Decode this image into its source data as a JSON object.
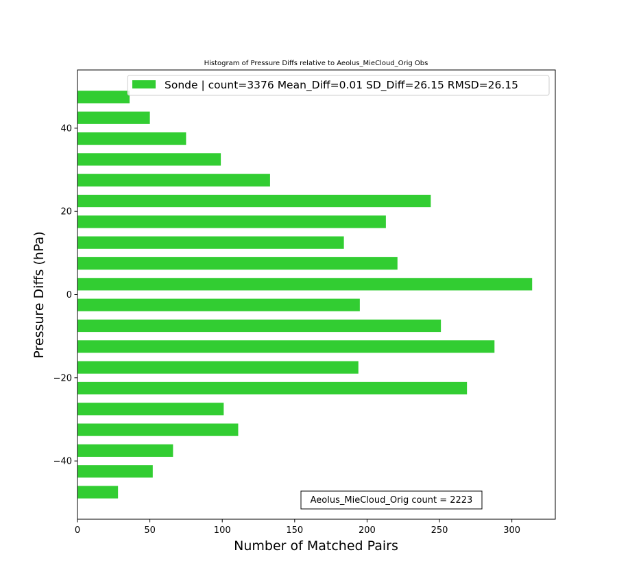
{
  "chart_data": {
    "type": "bar",
    "orientation": "horizontal",
    "title": "Histogram of Pressure Diffs relative to Aeolus_MieCloud_Orig Obs",
    "xlabel": "Number of Matched Pairs",
    "ylabel": "Pressure Diffs (hPa)",
    "xlim": [
      0,
      330
    ],
    "ylim": [
      -54,
      54
    ],
    "xticks": [
      0,
      50,
      100,
      150,
      200,
      250,
      300
    ],
    "yticks": [
      -40,
      -20,
      0,
      20,
      40
    ],
    "grid": false,
    "legend_position": "top-right",
    "bar_color": "#32cd32",
    "series": [
      {
        "name": "Sonde | count=3376 Mean_Diff=0.01 SD_Diff=26.15 RMSD=26.15",
        "bins": [
          -47.5,
          -42.5,
          -37.5,
          -32.5,
          -27.5,
          -22.5,
          -17.5,
          -12.5,
          -7.5,
          -2.5,
          2.5,
          7.5,
          12.5,
          17.5,
          22.5,
          27.5,
          32.5,
          37.5,
          42.5,
          47.5
        ],
        "values": [
          28,
          52,
          66,
          111,
          101,
          269,
          194,
          288,
          251,
          195,
          314,
          221,
          184,
          213,
          244,
          133,
          99,
          75,
          50,
          36
        ]
      }
    ],
    "annotation": "Aeolus_MieCloud_Orig count = 2223"
  }
}
